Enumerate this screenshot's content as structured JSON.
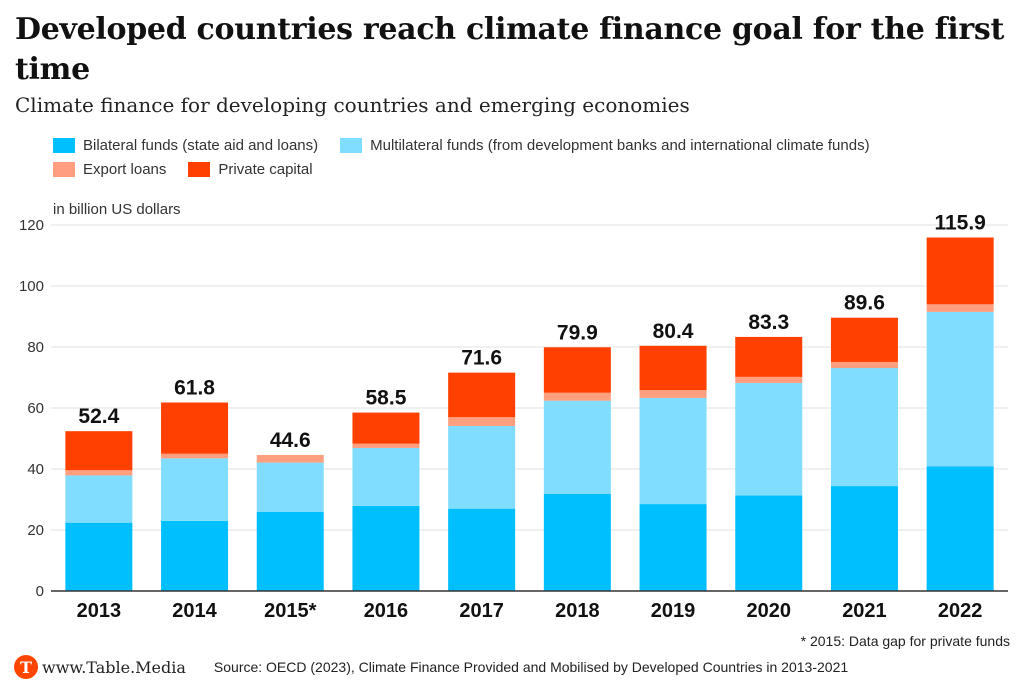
{
  "header": {
    "title": "Developed countries reach climate finance goal for the first time",
    "subtitle": "Climate finance for developing countries and emerging economies"
  },
  "footer": {
    "note": "* 2015: Data gap for private funds",
    "logo_letter": "T",
    "site": "www.Table.Media",
    "source": "Source: OECD (2023), Climate Finance Provided and Mobilised by Developed Countries in 2013-2021"
  },
  "chart_data": {
    "type": "bar",
    "stacked": true,
    "title": "Developed countries reach climate finance goal for the first time",
    "ylabel": "in billion US dollars",
    "xlabel": "",
    "ylim": [
      0,
      120
    ],
    "yticks": [
      0,
      20,
      40,
      60,
      80,
      100,
      120
    ],
    "grid": true,
    "legend_position": "top-left",
    "categories": [
      "2013",
      "2014",
      "2015*",
      "2016",
      "2017",
      "2018",
      "2019",
      "2020",
      "2021",
      "2022"
    ],
    "totals": [
      "52.4",
      "61.8",
      "44.6",
      "58.5",
      "71.6",
      "79.9",
      "80.4",
      "83.3",
      "89.6",
      "115.9"
    ],
    "series": [
      {
        "name": "Bilateral funds (state aid and loans)",
        "color": "#00bfff",
        "values": [
          22.4,
          23.0,
          25.9,
          27.9,
          27.0,
          31.9,
          28.5,
          31.3,
          34.4,
          40.9
        ]
      },
      {
        "name": "Multilateral funds (from development banks and international climate funds)",
        "color": "#80ddff",
        "values": [
          15.5,
          20.5,
          16.2,
          19.0,
          27.1,
          30.5,
          34.8,
          36.9,
          38.7,
          50.6
        ]
      },
      {
        "name": "Export loans",
        "color": "#ff9f80",
        "values": [
          1.7,
          1.5,
          2.5,
          1.4,
          2.9,
          2.6,
          2.6,
          2.0,
          2.0,
          2.5
        ]
      },
      {
        "name": "Private capital",
        "color": "#ff4000",
        "values": [
          12.8,
          16.8,
          0,
          10.2,
          14.6,
          14.9,
          14.5,
          13.1,
          14.5,
          21.9
        ]
      }
    ]
  }
}
